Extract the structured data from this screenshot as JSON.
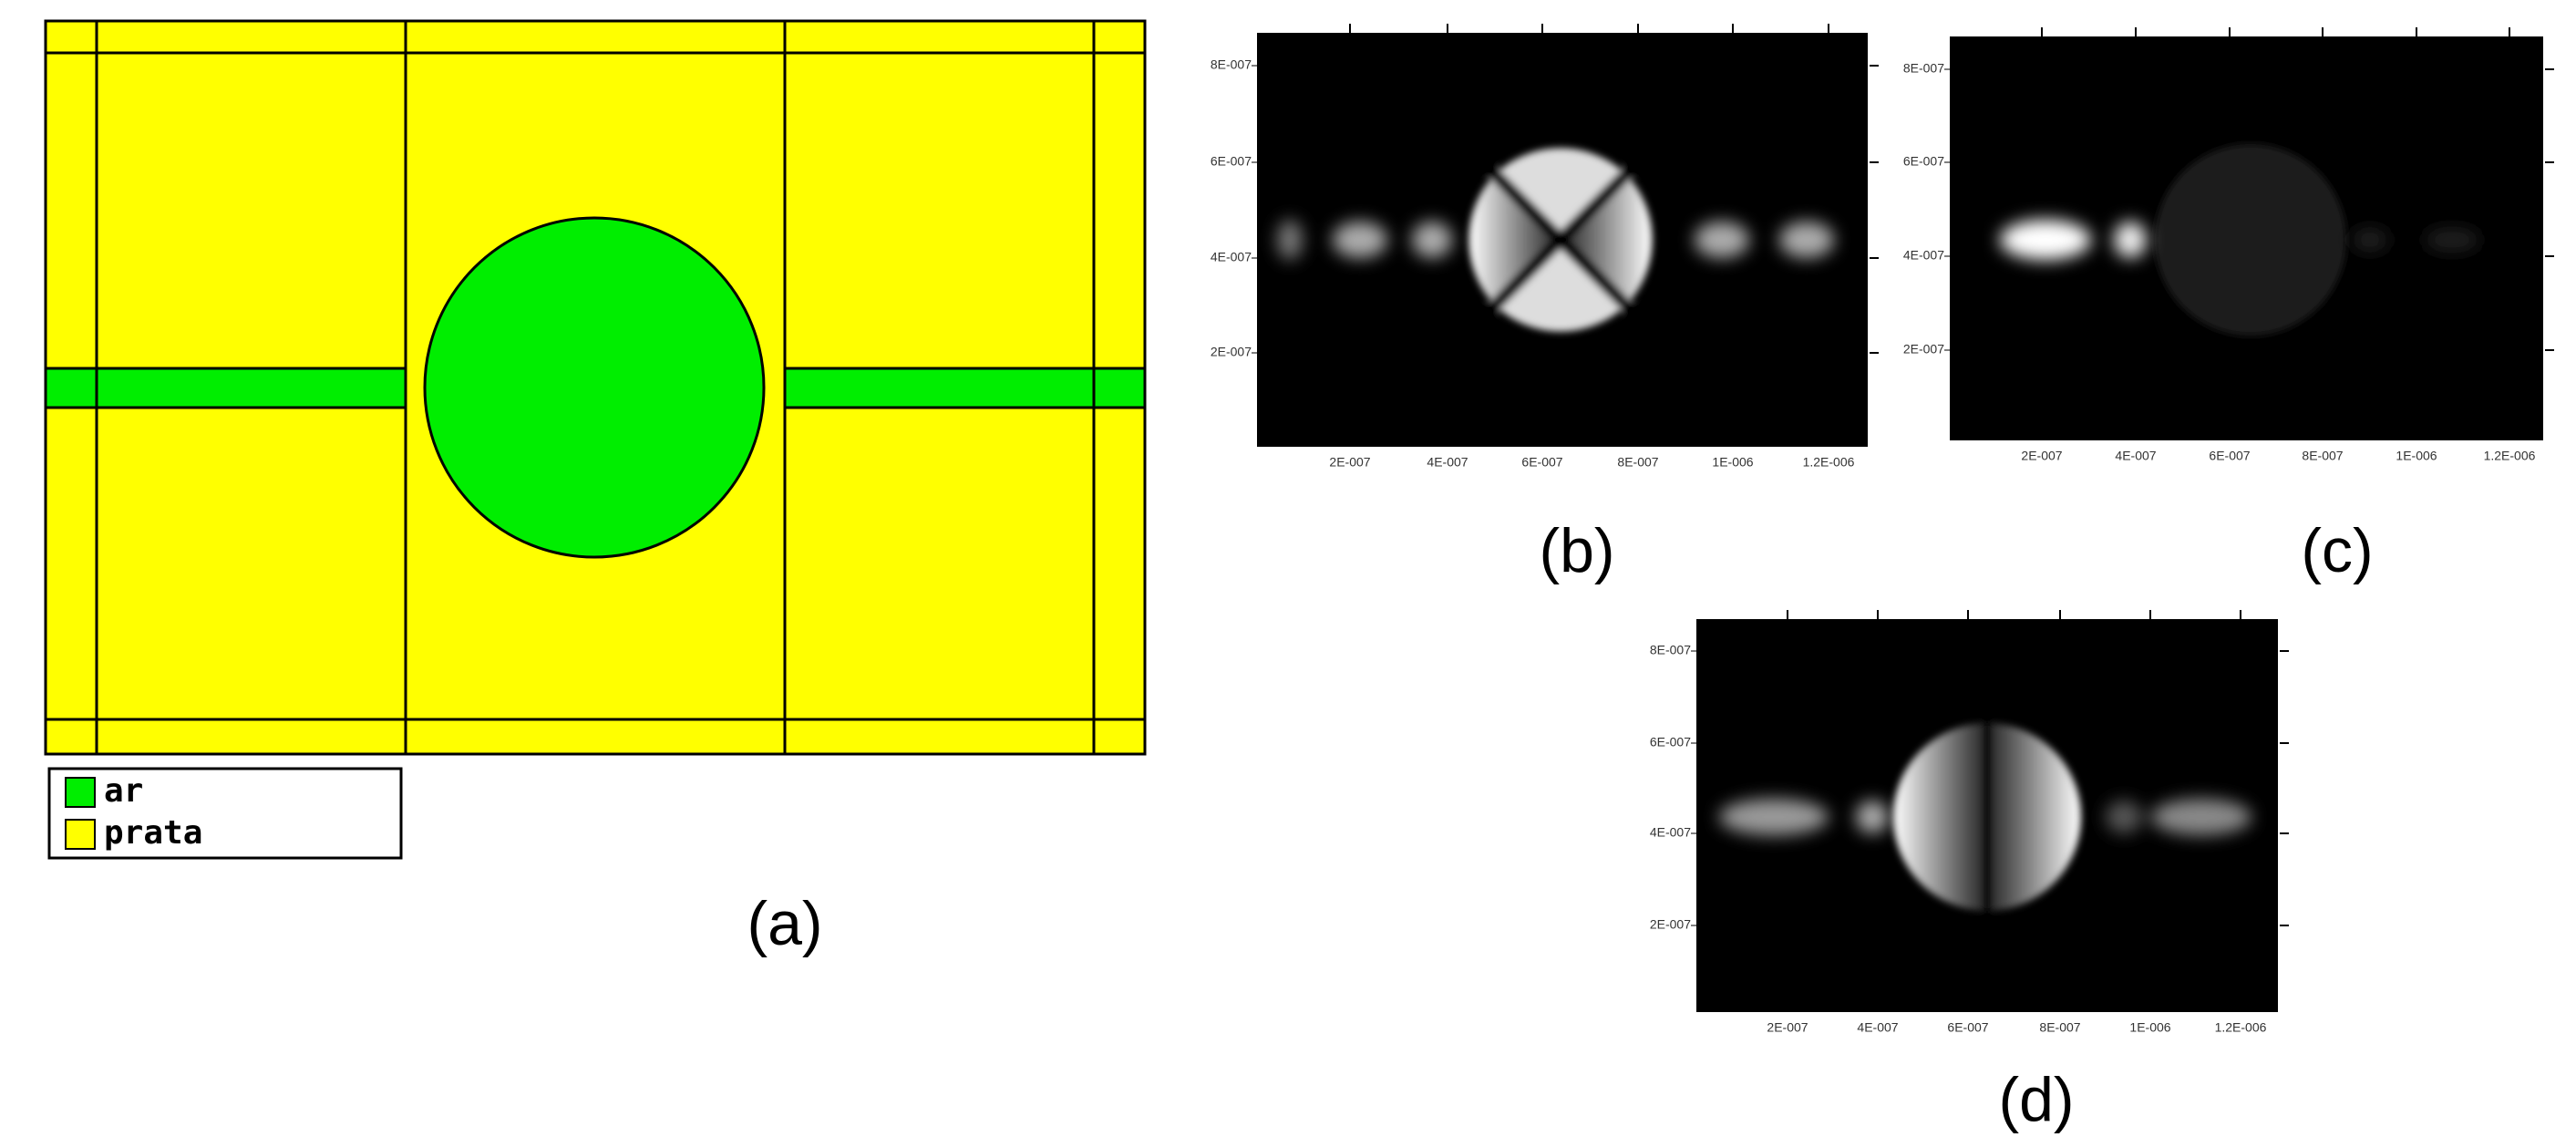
{
  "panels": {
    "a": {
      "label": "(a)",
      "legend": [
        "ar",
        "prata"
      ]
    },
    "b": {
      "label": "(b)",
      "xticks": [
        "2E-007",
        "4E-007",
        "6E-007",
        "8E-007",
        "1E-006",
        "1.2E-006"
      ],
      "yticks": [
        "8E-007",
        "6E-007",
        "4E-007",
        "2E-007"
      ]
    },
    "c": {
      "label": "(c)",
      "xticks": [
        "2E-007",
        "4E-007",
        "6E-007",
        "8E-007",
        "1E-006",
        "1.2E-006"
      ],
      "yticks": [
        "8E-007",
        "6E-007",
        "4E-007",
        "2E-007"
      ]
    },
    "d": {
      "label": "(d)",
      "xticks": [
        "2E-007",
        "4E-007",
        "6E-007",
        "8E-007",
        "1E-006",
        "1.2E-006"
      ],
      "yticks": [
        "8E-007",
        "6E-007",
        "4E-007",
        "2E-007"
      ]
    }
  }
}
